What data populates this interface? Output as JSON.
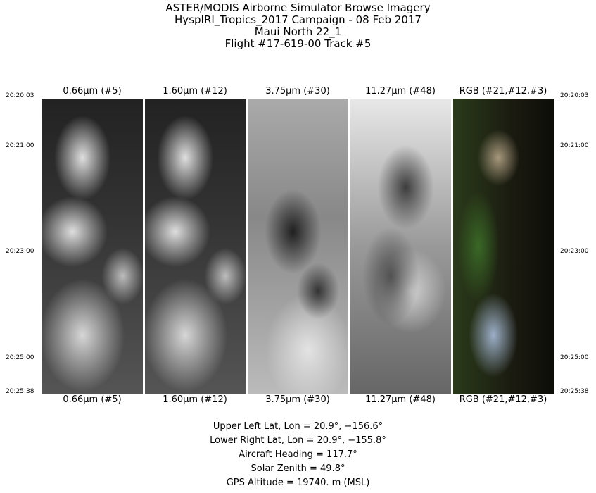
{
  "title": {
    "line1": "ASTER/MODIS Airborne Simulator Browse Imagery",
    "line2": "HyspIRI_Tropics_2017 Campaign - 08 Feb 2017",
    "line3": "Maui North 22_1",
    "line4": "Flight #17-619-00 Track #5"
  },
  "times": [
    "20:20:03",
    "20:21:00",
    "20:23:00",
    "20:25:00",
    "20:25:38"
  ],
  "panels": [
    {
      "label": "0.66μm (#5)"
    },
    {
      "label": "1.60μm (#12)"
    },
    {
      "label": "3.75μm (#30)"
    },
    {
      "label": "11.27μm (#48)"
    },
    {
      "label": "RGB (#21,#12,#3)"
    }
  ],
  "info": {
    "upper_left": "Upper Left Lat, Lon =   20.9°, −156.6°",
    "lower_right": "Lower Right Lat, Lon =   20.9°, −155.8°",
    "heading": "Aircraft Heading =  117.7°",
    "solar_zenith": "Solar Zenith =   49.8°",
    "altitude": "GPS Altitude =  19740. m (MSL)"
  }
}
